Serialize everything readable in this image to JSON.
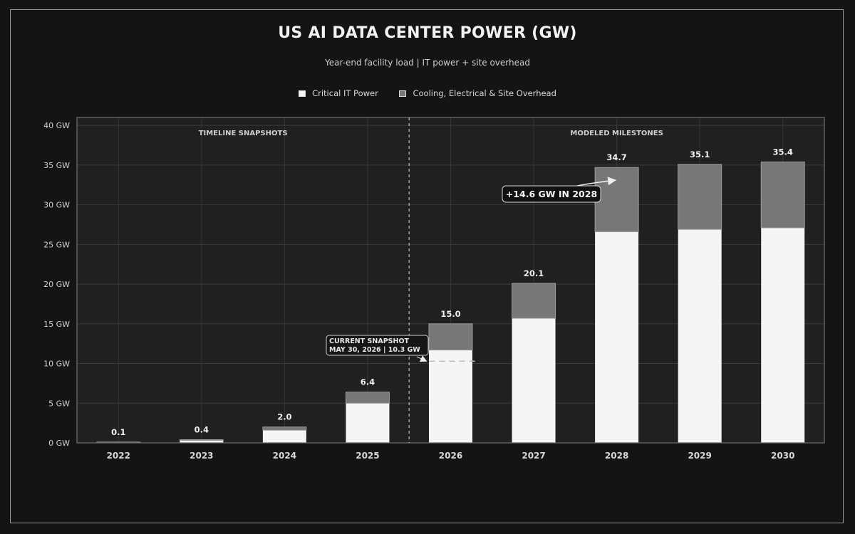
{
  "title": "US AI DATA CENTER POWER (GW)",
  "subtitle": "Year-end facility load  |  IT power + site overhead",
  "legend": {
    "it_label": "Critical IT Power",
    "overhead_label": "Cooling, Electrical & Site Overhead"
  },
  "colors": {
    "background": "#141414",
    "plot_bg": "#202020",
    "it": "#f5f5f5",
    "overhead": "#777777",
    "text": "#d8d8d8"
  },
  "chart_data": {
    "type": "bar",
    "stacked": true,
    "categories": [
      "2022",
      "2023",
      "2024",
      "2025",
      "2026",
      "2027",
      "2028",
      "2029",
      "2030"
    ],
    "series": [
      {
        "name": "Critical IT Power",
        "values": [
          0.08,
          0.32,
          1.6,
          5.0,
          11.7,
          15.7,
          26.6,
          26.9,
          27.1
        ]
      },
      {
        "name": "Cooling, Electrical & Site Overhead",
        "values": [
          0.02,
          0.08,
          0.4,
          1.4,
          3.3,
          4.4,
          8.1,
          8.2,
          8.3
        ]
      }
    ],
    "totals": [
      0.1,
      0.4,
      2.0,
      6.4,
      15.0,
      20.1,
      34.7,
      35.1,
      35.4
    ],
    "total_labels": [
      "0.1",
      "0.4",
      "2.0",
      "6.4",
      "15.0",
      "20.1",
      "34.7",
      "35.1",
      "35.4"
    ],
    "ylim": [
      0,
      41
    ],
    "yticks": [
      0,
      5,
      10,
      15,
      20,
      25,
      30,
      35,
      40
    ],
    "ytick_labels": [
      "0 GW",
      "5 GW",
      "10 GW",
      "15 GW",
      "20 GW",
      "25 GW",
      "30 GW",
      "35 GW",
      "40 GW"
    ],
    "grid": true,
    "legend_position": "top",
    "sections": {
      "left_label": "TIMELINE SNAPSHOTS",
      "right_label": "MODELED MILESTONES",
      "divider_between": [
        "2025",
        "2026"
      ]
    },
    "annotations": {
      "snapshot": {
        "line1": "CURRENT SNAPSHOT",
        "line2": "MAY 30, 2026  |  10.3 GW",
        "value": 10.3,
        "category": "2026"
      },
      "milestone": {
        "text": "+14.6 GW IN 2028",
        "category": "2028",
        "target_value": 33.1
      }
    }
  }
}
